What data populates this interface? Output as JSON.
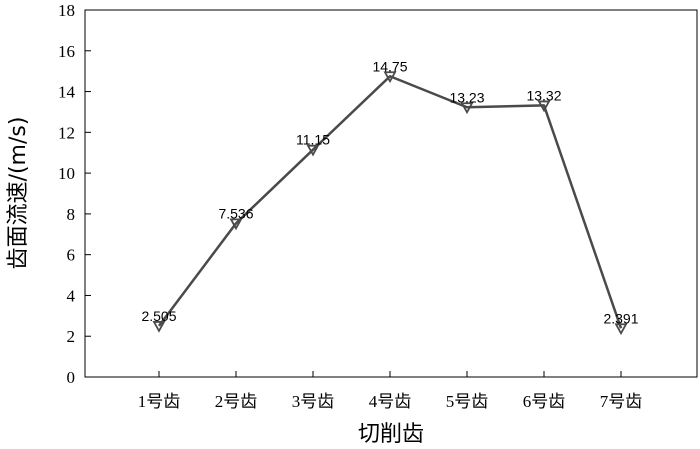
{
  "chart_data": {
    "type": "line",
    "categories": [
      "1号齿",
      "2号齿",
      "3号齿",
      "4号齿",
      "5号齿",
      "6号齿",
      "7号齿"
    ],
    "series": [
      {
        "values": [
          2.505,
          7.536,
          11.15,
          14.75,
          13.23,
          13.32,
          2.391
        ],
        "data_labels": [
          "2.505",
          "7.536",
          "11.15",
          "14.75",
          "13.23",
          "13.32",
          "2.391"
        ],
        "marker": "triangle-down",
        "color": "#4a4a4a"
      }
    ],
    "xlabel": "切削齿",
    "ylabel": "齿面流速/(m/s)",
    "ylim": [
      0,
      18
    ],
    "yticks": [
      0,
      2,
      4,
      6,
      8,
      10,
      12,
      14,
      16,
      18
    ],
    "grid": false,
    "legend": "none"
  }
}
